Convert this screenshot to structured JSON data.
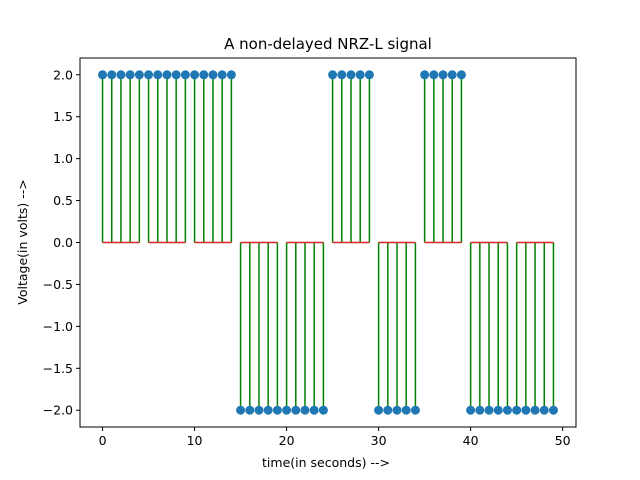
{
  "chart_data": {
    "type": "stem",
    "title": "A non-delayed NRZ-L signal",
    "xlabel": "time(in seconds) -->",
    "ylabel": "Voltage(in volts) -->",
    "xlim": [
      -2.45,
      51.45
    ],
    "ylim": [
      -2.2,
      2.2
    ],
    "xticks": [
      0,
      10,
      20,
      30,
      40,
      50
    ],
    "yticks": [
      -2.0,
      -1.5,
      -1.0,
      -0.5,
      0.0,
      0.5,
      1.0,
      1.5,
      2.0
    ],
    "xtick_labels": [
      "0",
      "10",
      "20",
      "30",
      "40",
      "50"
    ],
    "ytick_labels": [
      "−2.0",
      "−1.5",
      "−1.0",
      "−0.5",
      "0.0",
      "0.5",
      "1.0",
      "1.5",
      "2.0"
    ],
    "baseline": 0,
    "samples_per_bit": 5,
    "bits": [
      1,
      1,
      1,
      -1,
      -1,
      1,
      -1,
      1,
      -1,
      -1
    ],
    "amplitude": 2,
    "x": [
      0,
      1,
      2,
      3,
      4,
      5,
      6,
      7,
      8,
      9,
      10,
      11,
      12,
      13,
      14,
      15,
      16,
      17,
      18,
      19,
      20,
      21,
      22,
      23,
      24,
      25,
      26,
      27,
      28,
      29,
      30,
      31,
      32,
      33,
      34,
      35,
      36,
      37,
      38,
      39,
      40,
      41,
      42,
      43,
      44,
      45,
      46,
      47,
      48,
      49
    ],
    "y": [
      2,
      2,
      2,
      2,
      2,
      2,
      2,
      2,
      2,
      2,
      2,
      2,
      2,
      2,
      2,
      -2,
      -2,
      -2,
      -2,
      -2,
      -2,
      -2,
      -2,
      -2,
      -2,
      2,
      2,
      2,
      2,
      2,
      -2,
      -2,
      -2,
      -2,
      -2,
      2,
      2,
      2,
      2,
      2,
      -2,
      -2,
      -2,
      -2,
      -2,
      -2,
      -2,
      -2,
      -2,
      -2
    ],
    "colors": {
      "stem": "#008000",
      "marker": "#1f77b4",
      "baseline": "#d62728",
      "axes": "#000000"
    }
  }
}
